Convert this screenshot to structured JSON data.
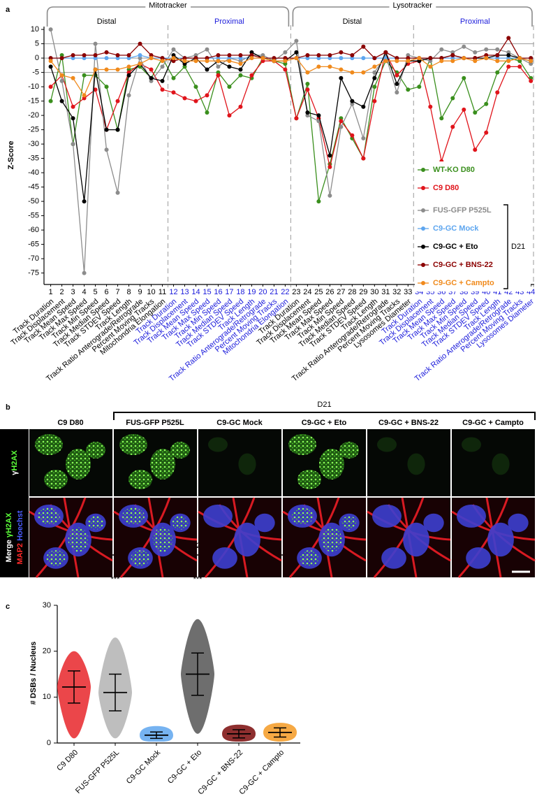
{
  "chart_data": [
    {
      "type": "line",
      "panel_label": "a",
      "y_label": "Z-Score",
      "groups": [
        {
          "label": "Mitotracker",
          "subgroups": [
            "Distal",
            "Proximal"
          ]
        },
        {
          "label": "Lysotracker",
          "subgroups": [
            "Distal",
            "Proximal"
          ]
        }
      ],
      "x": [
        1,
        2,
        3,
        4,
        5,
        6,
        7,
        8,
        9,
        10,
        11,
        12,
        13,
        14,
        15,
        16,
        17,
        18,
        19,
        20,
        21,
        22,
        23,
        24,
        25,
        26,
        27,
        28,
        29,
        30,
        31,
        32,
        33,
        34,
        35,
        36,
        37,
        38,
        39,
        40,
        41,
        42,
        43,
        44
      ],
      "categories": [
        "Track Duration",
        "Track Displacement",
        "Track Mean Speed",
        "Track Max Speed",
        "Track Min Speed",
        "Track Median Speed",
        "Track STDEV Speed",
        "Track Length",
        "Track Ratio Anterograde/Retrograde",
        "Percent Moving Tracks",
        "Mitochondria Elongation",
        "Track Duration",
        "Track Displacement",
        "Track Mean Speed",
        "Track Max Speed",
        "Track Min Speed",
        "Track Median Speed",
        "Track STDEV Speed",
        "Track Length",
        "Track Ratio Anterograde/Retrograde",
        "Percent Moving Tracks",
        "Mitochondria Elongation",
        "Track Duration",
        "Track Displacement",
        "Track Mean Speed",
        "Track Max Speed",
        "Track Min Speed",
        "Track Median Speed",
        "Track STDEV Speed",
        "Track Length",
        "Track Ratio Anterograde/Retrograde",
        "Percent Moving Tracks",
        "Lysosomes Diameter",
        "Track Duration",
        "Track Displacement",
        "Track Mean Speed",
        "Track Max Speed",
        "Track Min Speed",
        "Track Median Speed",
        "Track STDEV Speed",
        "Track Length",
        "Track Ratio Anterograde/Retrograde",
        "Percent Moving Tracks",
        "Lysosomes Diameter"
      ],
      "xlim": [
        0.4,
        44.3
      ],
      "ylim": [
        -79,
        11
      ],
      "yticks": [
        10,
        5,
        0,
        -5,
        -10,
        -15,
        -20,
        -25,
        -30,
        -35,
        -40,
        -45,
        -50,
        -55,
        -60,
        -65,
        -70,
        -75
      ],
      "hlines": [
        5,
        0,
        -5
      ],
      "legend_group_label": "D21",
      "series": [
        {
          "name": "WT-KO D80",
          "color": "#3a8f1d",
          "values": [
            -15,
            1,
            -30,
            -6,
            -6,
            -10,
            -25,
            -4,
            -3,
            -7,
            0,
            -7,
            -3,
            -10,
            -19,
            -5,
            -10,
            -6,
            -7,
            0,
            -1,
            -2,
            -21,
            -9,
            -50,
            -37,
            -21,
            -28,
            -35,
            -10,
            -1,
            -5,
            -11,
            -10,
            0,
            -21,
            -14,
            -7,
            -19,
            -16,
            -5,
            0,
            -1,
            -7
          ]
        },
        {
          "name": "C9 D80",
          "color": "#e0141b",
          "values": [
            -10,
            -6,
            -17,
            -14,
            -11,
            -25,
            -15,
            -5,
            -2,
            -4,
            -11,
            -12,
            -14,
            -15,
            -13,
            -6,
            -20,
            -17,
            -6,
            -1,
            -1,
            -4,
            -21,
            -11,
            -21,
            -38,
            -22,
            -27,
            -35,
            -15,
            2,
            -6,
            -2,
            -1,
            -17,
            -36,
            -24,
            -18,
            -32,
            -26,
            -12,
            -3,
            -3,
            -8
          ]
        },
        {
          "name": "FUS-GFP P525L",
          "color": "#8c8c8c",
          "values": [
            10,
            -8,
            -30,
            -75,
            5,
            -32,
            -47,
            -13,
            0,
            -8,
            -3,
            3,
            0,
            1,
            3,
            -3,
            0,
            -1,
            1,
            1,
            -1,
            2,
            6,
            -20,
            -22,
            -48,
            -24,
            -16,
            -28,
            -5,
            1,
            -12,
            1,
            0,
            -1,
            3,
            2,
            4,
            2,
            3,
            3,
            2,
            0,
            -2
          ]
        },
        {
          "name": "C9-GC Mock",
          "color": "#5ea6ef",
          "values": [
            0,
            0,
            0,
            0,
            0,
            0,
            0,
            0,
            1,
            0,
            0,
            0,
            0,
            0,
            0,
            0,
            0,
            0,
            0,
            0,
            0,
            0,
            0,
            0,
            0,
            0,
            0,
            0,
            0,
            0,
            0,
            0,
            0,
            0,
            0,
            0,
            0,
            0,
            0,
            0,
            0,
            0,
            0,
            0
          ]
        },
        {
          "name": "C9-GC + Eto",
          "color": "#000000",
          "values": [
            -3,
            -15,
            -21,
            -50,
            -4,
            -25,
            -25,
            -6,
            -2,
            -7,
            -8,
            1,
            -2,
            0,
            -4,
            -1,
            -3,
            -4,
            2,
            0,
            -1,
            -1,
            2,
            -19,
            -20,
            -34,
            -7,
            -15,
            -17,
            -7,
            2,
            -9,
            -1,
            -1,
            0,
            0,
            1,
            0,
            0,
            0,
            1,
            1,
            0,
            -1
          ]
        },
        {
          "name": "C9-GC + BNS-22",
          "color": "#8b0000",
          "values": [
            0,
            0,
            1,
            1,
            1,
            2,
            1,
            1,
            5,
            1,
            0,
            -1,
            0,
            0,
            0,
            1,
            1,
            1,
            1,
            0,
            0,
            0,
            0,
            1,
            1,
            1,
            2,
            1,
            4,
            0,
            2,
            0,
            0,
            0,
            0,
            0,
            1,
            0,
            0,
            1,
            1,
            7,
            0,
            0
          ]
        },
        {
          "name": "C9-GC + Campto",
          "color": "#f08a1c",
          "values": [
            -1,
            -6,
            -7,
            -13,
            -4,
            -4,
            -4,
            -3,
            -2,
            0,
            -1,
            0,
            -1,
            -1,
            -1,
            -1,
            -1,
            -2,
            0,
            0,
            -1,
            -1,
            0,
            -5,
            -3,
            -3,
            -4,
            -5,
            -5,
            -3,
            -1,
            -1,
            -1,
            0,
            -3,
            -1,
            -1,
            0,
            -1,
            0,
            -1,
            -1,
            0,
            -1
          ]
        }
      ]
    },
    {
      "type": "dot_plot",
      "panel_label": "c",
      "y_label": "# DSBs / Nucleus",
      "group_label": "D21",
      "categories": [
        "C9 D80",
        "FUS-GFP P525L",
        "C9-GC Mock",
        "C9-GC + Eto",
        "C9-GC + BNS-22",
        "C9-GC + Campto"
      ],
      "colors": [
        "#e8262a",
        "#b3b3b3",
        "#5ea6ef",
        "#555555",
        "#7a0a0a",
        "#f59a23"
      ],
      "mean": [
        12.2,
        11,
        1.7,
        15,
        2,
        2.3
      ],
      "sd": [
        3.5,
        4,
        0.7,
        4.6,
        0.9,
        1
      ],
      "min": [
        1,
        1,
        0.3,
        2,
        0.3,
        0.3
      ],
      "max": [
        20,
        23,
        3.7,
        27,
        4,
        4.4
      ],
      "significance": [
        null,
        "***",
        null,
        "***",
        null,
        null
      ],
      "ylim": [
        0,
        30
      ],
      "yticks": [
        0,
        10,
        20,
        30
      ]
    }
  ],
  "image_panel": {
    "panel_label": "b",
    "group_label": "D21",
    "columns": [
      "C9 D80",
      "FUS-GFP P525L",
      "C9-GC Mock",
      "C9-GC + Eto",
      "C9-GC + BNS-22",
      "C9-GC + Campto"
    ],
    "rows": [
      [
        [
          {
            "text": "γ",
            "color": "#ffffff"
          },
          {
            "text": "H2AX",
            "color": "#5cff3a"
          }
        ]
      ],
      [
        [
          {
            "text": "Merge ",
            "color": "#ffffff"
          },
          {
            "text": "γH2AX",
            "color": "#5cff3a"
          }
        ],
        [
          {
            "text": "MAP2 ",
            "color": "#ff2a2a"
          },
          {
            "text": "Hoechst",
            "color": "#4a5cff"
          }
        ]
      ]
    ]
  }
}
